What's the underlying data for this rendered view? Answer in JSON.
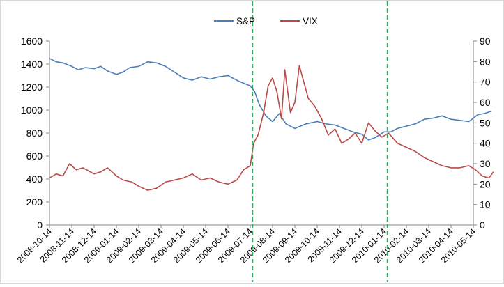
{
  "chart_data": {
    "type": "line",
    "title": "",
    "xlabel": "",
    "ylabel": "",
    "x_tick_labels": [
      "2008-10-14",
      "2008-11-14",
      "2008-12-14",
      "2009-01-14",
      "2009-02-14",
      "2009-03-14",
      "2009-04-14",
      "2009-05-14",
      "2009-06-14",
      "2009-07-14",
      "2009-08-14",
      "2009-09-14",
      "2009-10-14",
      "2009-11-14",
      "2009-12-14",
      "2010-01-14",
      "2010-02-14",
      "2010-03-14",
      "2010-04-14",
      "2010-05-14"
    ],
    "y_left": {
      "ylim": [
        0,
        1600
      ],
      "ticks": [
        "0",
        "200",
        "400",
        "600",
        "800",
        "1000",
        "1200",
        "1400",
        "1600"
      ]
    },
    "y_right": {
      "ylim": [
        0,
        90
      ],
      "ticks": [
        "0",
        "10",
        "20",
        "30",
        "40",
        "50",
        "60",
        "70",
        "80",
        "90"
      ]
    },
    "grid": false,
    "legend_position": "top-center",
    "series": [
      {
        "name": "S&P",
        "axis": "left",
        "color": "#4a7ebb",
        "points": [
          [
            0,
            1450
          ],
          [
            0.3,
            1420
          ],
          [
            0.6,
            1410
          ],
          [
            1,
            1380
          ],
          [
            1.3,
            1350
          ],
          [
            1.6,
            1370
          ],
          [
            2,
            1360
          ],
          [
            2.3,
            1380
          ],
          [
            2.6,
            1340
          ],
          [
            3,
            1310
          ],
          [
            3.3,
            1330
          ],
          [
            3.6,
            1370
          ],
          [
            4,
            1380
          ],
          [
            4.4,
            1420
          ],
          [
            4.8,
            1410
          ],
          [
            5.2,
            1380
          ],
          [
            5.6,
            1330
          ],
          [
            6,
            1280
          ],
          [
            6.4,
            1260
          ],
          [
            6.8,
            1290
          ],
          [
            7.2,
            1270
          ],
          [
            7.6,
            1290
          ],
          [
            8,
            1300
          ],
          [
            8.5,
            1250
          ],
          [
            9,
            1210
          ],
          [
            9.2,
            1160
          ],
          [
            9.4,
            1050
          ],
          [
            9.7,
            950
          ],
          [
            10,
            900
          ],
          [
            10.3,
            970
          ],
          [
            10.6,
            880
          ],
          [
            11,
            840
          ],
          [
            11.5,
            880
          ],
          [
            12,
            900
          ],
          [
            12.4,
            880
          ],
          [
            12.8,
            870
          ],
          [
            13.2,
            840
          ],
          [
            13.6,
            810
          ],
          [
            14,
            790
          ],
          [
            14.3,
            740
          ],
          [
            14.6,
            760
          ],
          [
            15,
            810
          ],
          [
            15.3,
            810
          ],
          [
            15.6,
            840
          ],
          [
            16,
            860
          ],
          [
            16.4,
            880
          ],
          [
            16.8,
            920
          ],
          [
            17.2,
            930
          ],
          [
            17.6,
            950
          ],
          [
            18,
            920
          ],
          [
            18.4,
            910
          ],
          [
            18.8,
            900
          ],
          [
            19.2,
            960
          ],
          [
            19.5,
            970
          ],
          [
            19.8,
            990
          ]
        ]
      },
      {
        "name": "VIX",
        "axis": "right",
        "color": "#b94a48",
        "points": [
          [
            0,
            23
          ],
          [
            0.3,
            25
          ],
          [
            0.6,
            24
          ],
          [
            0.9,
            30
          ],
          [
            1.2,
            27
          ],
          [
            1.5,
            28
          ],
          [
            2,
            25
          ],
          [
            2.3,
            26
          ],
          [
            2.6,
            28
          ],
          [
            3,
            24
          ],
          [
            3.3,
            22
          ],
          [
            3.7,
            21
          ],
          [
            4,
            19
          ],
          [
            4.4,
            17
          ],
          [
            4.8,
            18
          ],
          [
            5.2,
            21
          ],
          [
            5.6,
            22
          ],
          [
            6,
            23
          ],
          [
            6.4,
            25
          ],
          [
            6.8,
            22
          ],
          [
            7.2,
            23
          ],
          [
            7.6,
            21
          ],
          [
            8,
            20
          ],
          [
            8.4,
            22
          ],
          [
            8.7,
            27
          ],
          [
            9,
            29
          ],
          [
            9.15,
            40
          ],
          [
            9.35,
            44
          ],
          [
            9.6,
            55
          ],
          [
            9.8,
            68
          ],
          [
            10,
            72
          ],
          [
            10.2,
            65
          ],
          [
            10.4,
            52
          ],
          [
            10.55,
            76
          ],
          [
            10.8,
            55
          ],
          [
            11,
            60
          ],
          [
            11.2,
            78
          ],
          [
            11.4,
            70
          ],
          [
            11.6,
            62
          ],
          [
            11.9,
            58
          ],
          [
            12.2,
            52
          ],
          [
            12.5,
            44
          ],
          [
            12.8,
            47
          ],
          [
            13.1,
            40
          ],
          [
            13.4,
            42
          ],
          [
            13.7,
            45
          ],
          [
            14,
            40
          ],
          [
            14.3,
            50
          ],
          [
            14.6,
            46
          ],
          [
            14.9,
            43
          ],
          [
            15.2,
            45
          ],
          [
            15.6,
            40
          ],
          [
            16,
            38
          ],
          [
            16.4,
            36
          ],
          [
            16.8,
            33
          ],
          [
            17.2,
            31
          ],
          [
            17.6,
            29
          ],
          [
            18,
            28
          ],
          [
            18.4,
            28
          ],
          [
            18.8,
            29
          ],
          [
            19.1,
            27
          ],
          [
            19.4,
            24
          ],
          [
            19.7,
            23
          ],
          [
            19.9,
            26
          ]
        ]
      }
    ],
    "reference_lines": [
      {
        "style": "dashed",
        "color": "#2eaa5a",
        "x": 9.1
      },
      {
        "style": "dashed",
        "color": "#2eaa5a",
        "x": 15.15
      }
    ]
  }
}
